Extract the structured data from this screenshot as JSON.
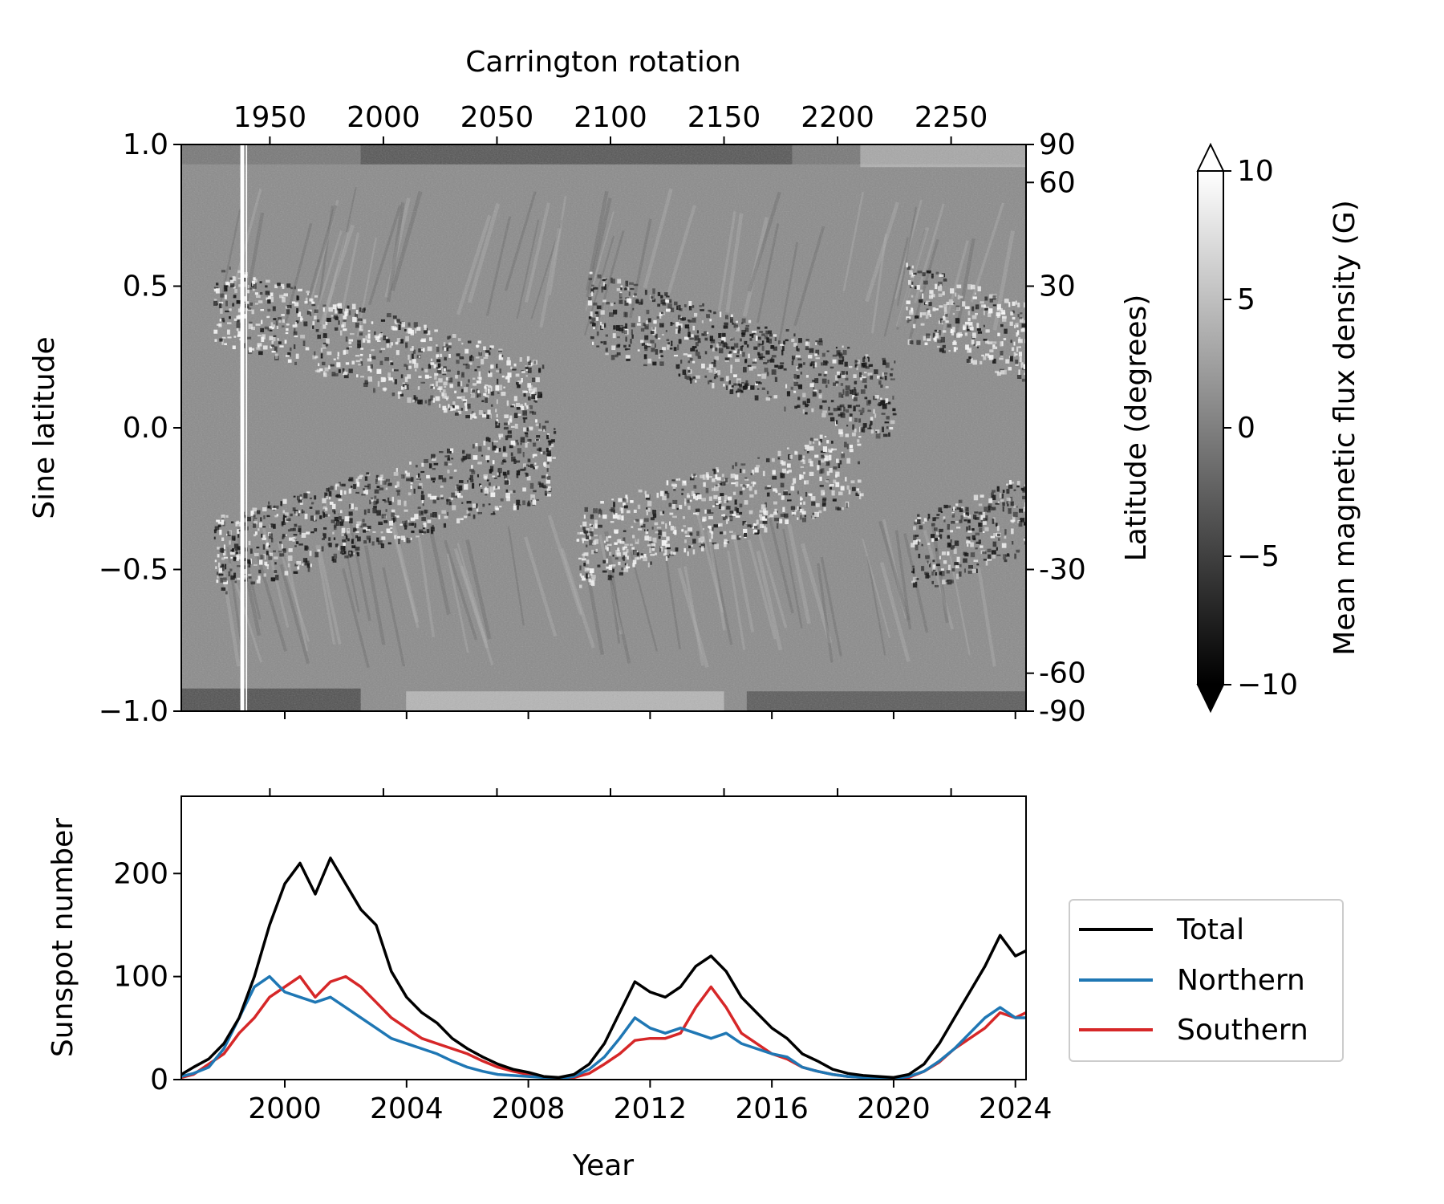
{
  "chart_data": [
    {
      "type": "heatmap",
      "title": "",
      "ylabel": "Sine latitude",
      "y2label": "Latitude (degrees)",
      "x2label": "Carrington rotation",
      "ylim": [
        -1.0,
        1.0
      ],
      "yticks": [
        "1.0",
        "0.5",
        "0.0",
        "−0.5",
        "−1.0"
      ],
      "yticks_values": [
        1.0,
        0.5,
        0.0,
        -0.5,
        -1.0
      ],
      "lat_ticks": [
        "90",
        "60",
        "30",
        "-30",
        "-60",
        "-90"
      ],
      "lat_ticks_values": [
        90,
        60,
        30,
        -30,
        -60,
        -90
      ],
      "cr_ticks": [
        "1950",
        "2000",
        "2050",
        "2100",
        "2150",
        "2200",
        "2250"
      ],
      "cr_ticks_values": [
        1950,
        2000,
        2050,
        2100,
        2150,
        2200,
        2250
      ],
      "xlim_cr": [
        1911,
        2283
      ],
      "colormap": "gray",
      "colorbar": {
        "label": "Mean magnetic flux density (G)",
        "range": [
          -10,
          10
        ],
        "ticks": [
          "10",
          "5",
          "0",
          "−5",
          "−10"
        ],
        "ticks_values": [
          10,
          5,
          0,
          -5,
          -10
        ],
        "extend": "both"
      },
      "data_gap_cr": [
        1937,
        1940
      ]
    },
    {
      "type": "line",
      "title": "",
      "xlabel": "Year",
      "ylabel": "Sunspot number",
      "xlim": [
        1996.6,
        2024.35
      ],
      "ylim": [
        0,
        275
      ],
      "xticks": [
        "2000",
        "2004",
        "2008",
        "2012",
        "2016",
        "2020",
        "2024"
      ],
      "xticks_values": [
        2000,
        2004,
        2008,
        2012,
        2016,
        2020,
        2024
      ],
      "yticks": [
        "0",
        "100",
        "200"
      ],
      "yticks_values": [
        0,
        100,
        200
      ],
      "legend_position": "outside-right",
      "x": [
        1996.6,
        1997.0,
        1997.5,
        1998.0,
        1998.5,
        1999.0,
        1999.5,
        2000.0,
        2000.5,
        2001.0,
        2001.5,
        2002.0,
        2002.5,
        2003.0,
        2003.5,
        2004.0,
        2004.5,
        2005.0,
        2005.5,
        2006.0,
        2006.5,
        2007.0,
        2007.5,
        2008.0,
        2008.5,
        2009.0,
        2009.5,
        2010.0,
        2010.5,
        2011.0,
        2011.5,
        2012.0,
        2012.5,
        2013.0,
        2013.5,
        2014.0,
        2014.5,
        2015.0,
        2015.5,
        2016.0,
        2016.5,
        2017.0,
        2017.5,
        2018.0,
        2018.5,
        2019.0,
        2019.5,
        2020.0,
        2020.5,
        2021.0,
        2021.5,
        2022.0,
        2022.5,
        2023.0,
        2023.5,
        2024.0,
        2024.35
      ],
      "series": [
        {
          "name": "Total",
          "color": "#000000",
          "values": [
            5,
            12,
            20,
            35,
            60,
            100,
            150,
            190,
            210,
            180,
            215,
            190,
            165,
            150,
            105,
            80,
            65,
            55,
            40,
            30,
            22,
            15,
            10,
            7,
            3,
            2,
            5,
            15,
            35,
            65,
            95,
            85,
            80,
            90,
            110,
            120,
            105,
            80,
            65,
            50,
            40,
            25,
            18,
            10,
            6,
            4,
            3,
            2,
            5,
            15,
            35,
            60,
            85,
            110,
            140,
            120,
            125
          ]
        },
        {
          "name": "Northern",
          "color": "#1f77b4",
          "values": [
            3,
            6,
            12,
            30,
            60,
            90,
            100,
            85,
            80,
            75,
            80,
            70,
            60,
            50,
            40,
            35,
            30,
            25,
            18,
            12,
            8,
            5,
            4,
            3,
            2,
            1,
            3,
            10,
            22,
            40,
            60,
            50,
            45,
            50,
            45,
            40,
            45,
            35,
            30,
            25,
            22,
            12,
            8,
            5,
            3,
            2,
            2,
            1,
            3,
            8,
            18,
            30,
            45,
            60,
            70,
            60,
            60
          ]
        },
        {
          "name": "Southern",
          "color": "#d62728",
          "values": [
            2,
            5,
            15,
            25,
            45,
            60,
            80,
            90,
            100,
            80,
            95,
            100,
            90,
            75,
            60,
            50,
            40,
            35,
            30,
            25,
            18,
            12,
            8,
            5,
            2,
            1,
            2,
            6,
            15,
            25,
            38,
            40,
            40,
            45,
            70,
            90,
            70,
            45,
            35,
            25,
            20,
            12,
            8,
            5,
            3,
            2,
            2,
            1,
            2,
            8,
            17,
            30,
            40,
            50,
            65,
            60,
            65
          ]
        }
      ]
    }
  ]
}
